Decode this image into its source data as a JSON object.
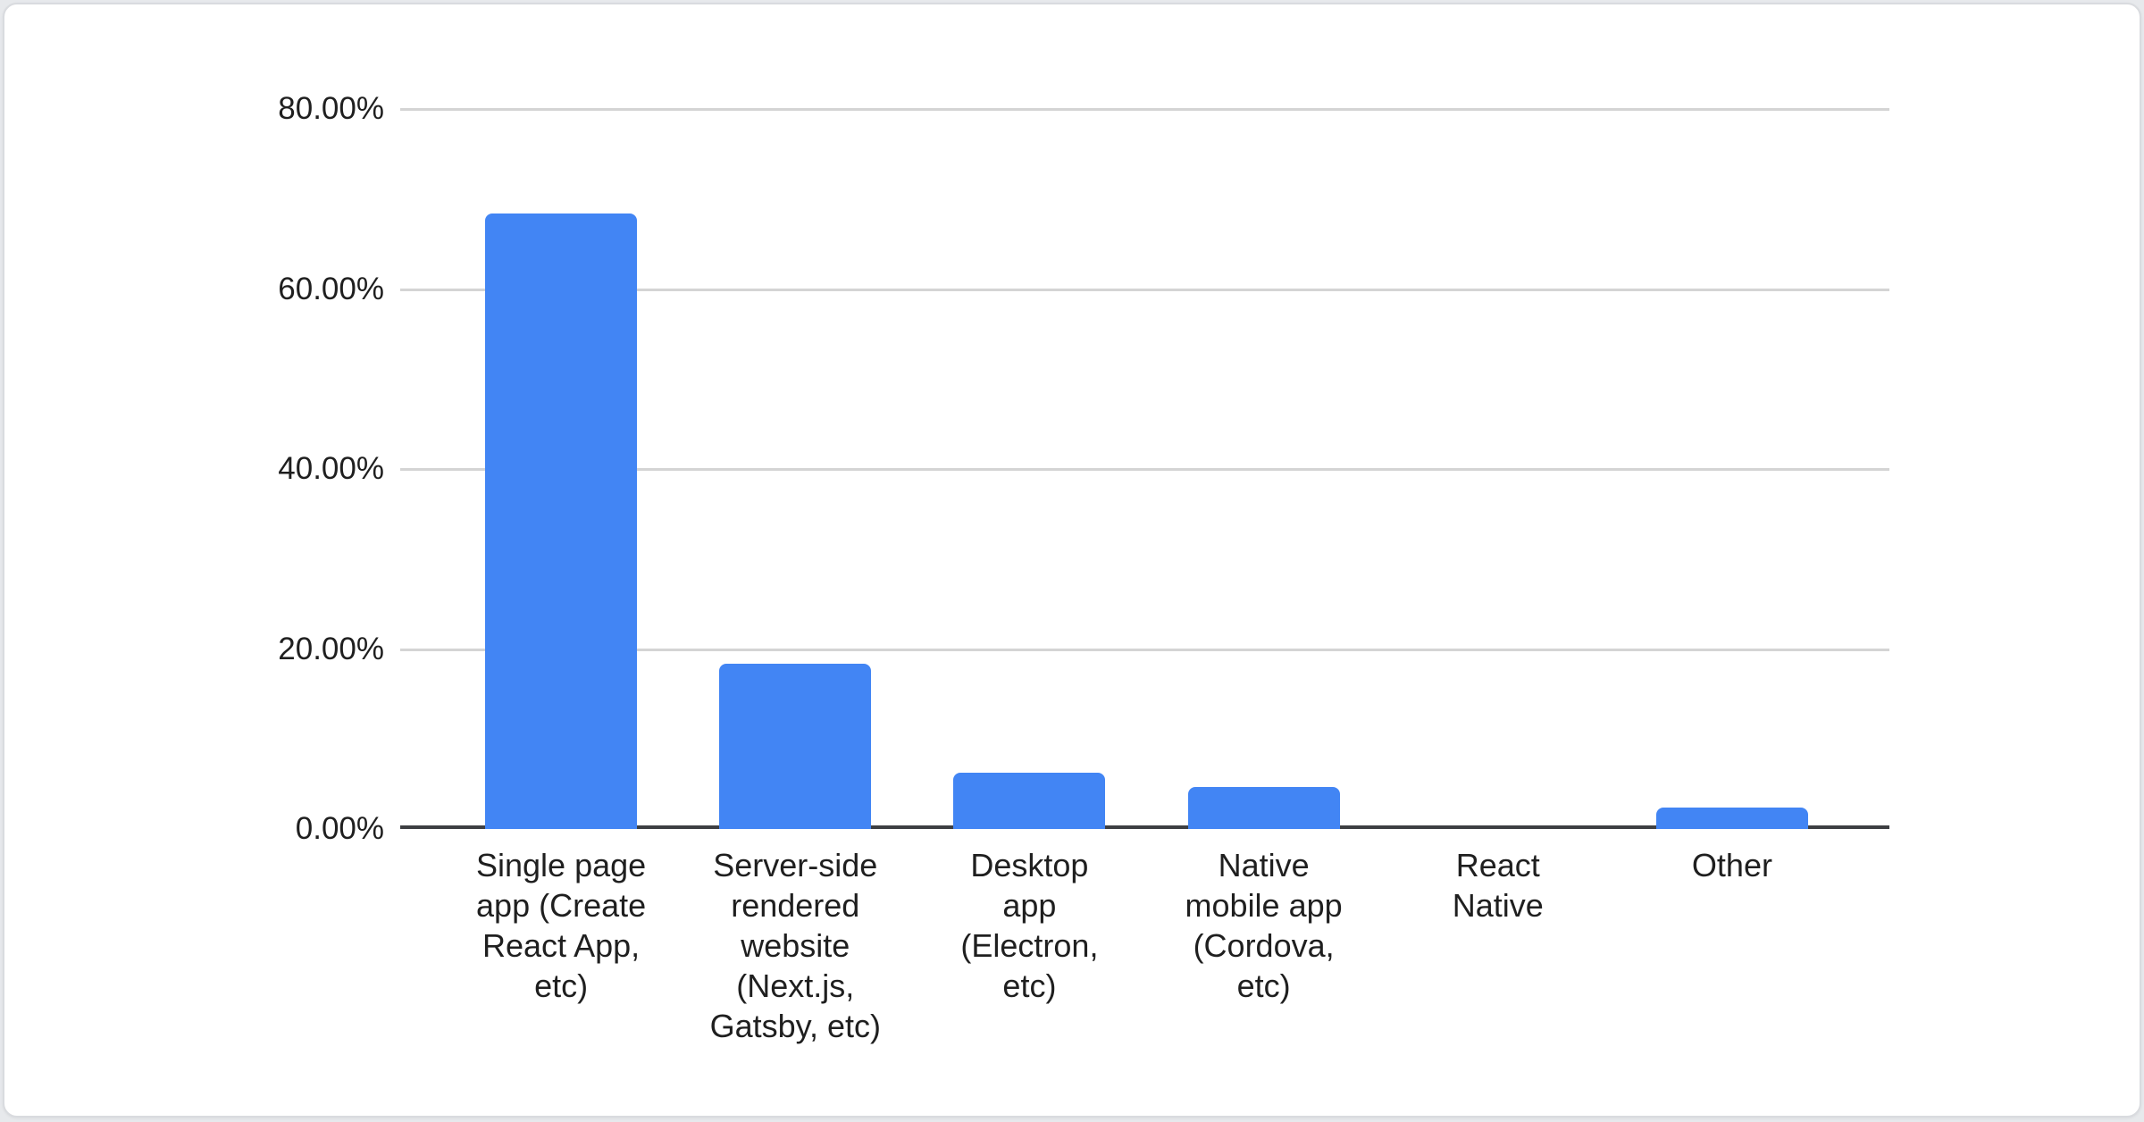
{
  "chart_data": {
    "type": "bar",
    "title": "",
    "categories": [
      "Single page app (Create React App, etc)",
      "Server-side rendered website (Next.js, Gatsby, etc)",
      "Desktop app (Electron, etc)",
      "Native mobile app (Cordova, etc)",
      "React Native",
      "Other"
    ],
    "category_lines": [
      [
        "Single page",
        "app (Create",
        "React App,",
        "etc)"
      ],
      [
        "Server-side",
        "rendered",
        "website",
        "(Next.js,",
        "Gatsby, etc)"
      ],
      [
        "Desktop",
        "app",
        "(Electron,",
        "etc)"
      ],
      [
        "Native",
        "mobile app",
        "(Cordova,",
        "etc)"
      ],
      [
        "React",
        "Native"
      ],
      [
        "Other"
      ]
    ],
    "values": [
      68.4,
      18.4,
      6.3,
      4.7,
      0,
      2.4
    ],
    "unit": "%",
    "xlabel": "",
    "ylabel": "",
    "ylim": [
      0,
      80
    ],
    "ytick_labels": [
      "80.00%",
      "60.00%",
      "40.00%",
      "20.00%",
      "0.00%"
    ],
    "ytick_values": [
      80,
      60,
      40,
      20,
      0
    ],
    "grid": true,
    "legend_position": "none",
    "colors": {
      "bar": "#4285f4",
      "gridline": "#d4d4d4",
      "axis_line": "#3d3f42",
      "text": "#1f1f1f",
      "card_background": "#ffffff",
      "card_border": "#d9dbdf",
      "page_background": "#e7e9ec"
    }
  }
}
